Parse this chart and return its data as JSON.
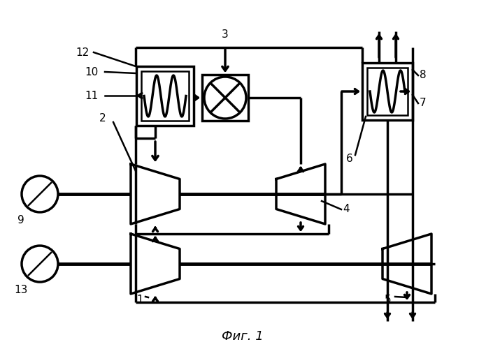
{
  "bg": "#ffffff",
  "lw": 1.8,
  "lw2": 2.5,
  "lw3": 3.5,
  "fig_caption": "Фиг. 1"
}
